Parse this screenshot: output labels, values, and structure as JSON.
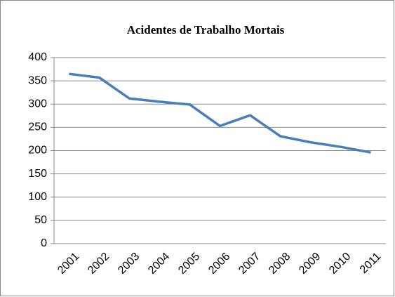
{
  "chart_data": {
    "type": "line",
    "title": "Acidentes de Trabalho Mortais",
    "categories": [
      "2001",
      "2002",
      "2003",
      "2004",
      "2005",
      "2006",
      "2007",
      "2008",
      "2009",
      "2010",
      "2011"
    ],
    "series": [
      {
        "color": "#4a7ebb",
        "values": [
          365,
          357,
          312,
          305,
          299,
          253,
          276,
          231,
          218,
          208,
          196
        ]
      }
    ],
    "ylim": [
      0,
      400
    ],
    "yticks": [
      0,
      50,
      100,
      150,
      200,
      250,
      300,
      350,
      400
    ],
    "grid": true
  }
}
